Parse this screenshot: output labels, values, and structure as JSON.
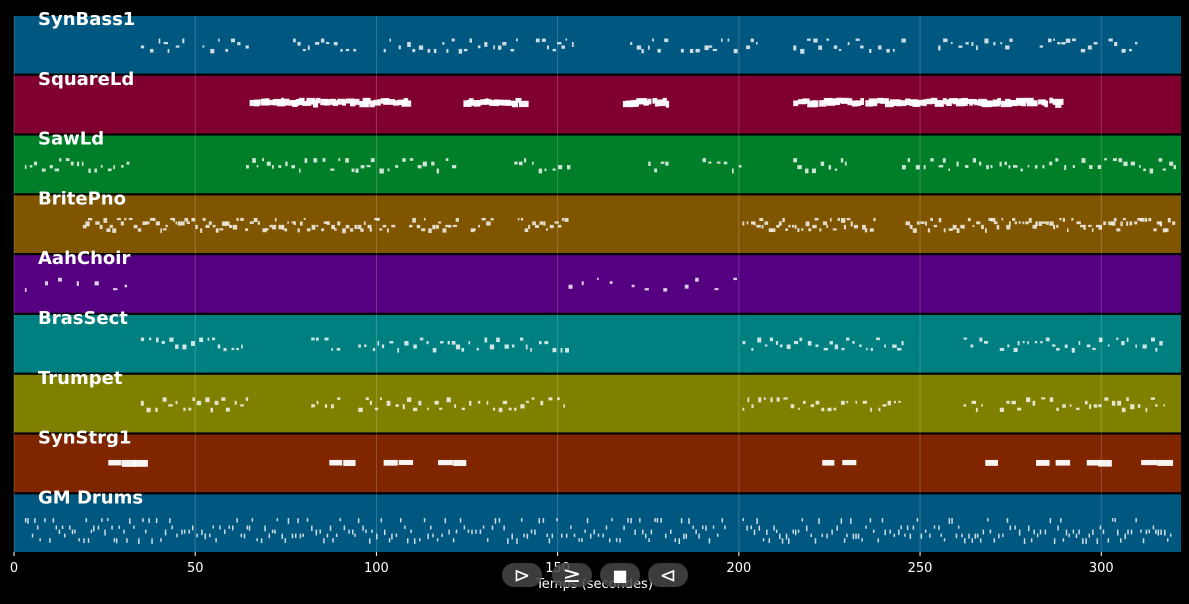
{
  "chart_data": {
    "type": "piano-roll",
    "xlabel": "Temps (secondes)",
    "xlim": [
      0,
      322
    ],
    "x_ticks": [
      0,
      50,
      100,
      150,
      200,
      250,
      300
    ],
    "grid": true,
    "tracks": [
      {
        "name": "SynBass1",
        "color": "#005780",
        "density": "medium",
        "note_style": "short",
        "segments": [
          [
            35,
            47
          ],
          [
            52,
            65
          ],
          [
            77,
            95
          ],
          [
            102,
            140
          ],
          [
            144,
            155
          ],
          [
            170,
            180
          ],
          [
            184,
            200
          ],
          [
            202,
            205
          ],
          [
            215,
            245
          ],
          [
            255,
            275
          ],
          [
            283,
            300
          ],
          [
            302,
            310
          ]
        ]
      },
      {
        "name": "SquareLd",
        "color": "#7f0030",
        "density": "dense",
        "note_style": "long",
        "segments": [
          [
            65,
            108
          ],
          [
            124,
            140
          ],
          [
            168,
            180
          ],
          [
            215,
            258
          ],
          [
            258,
            288
          ]
        ]
      },
      {
        "name": "SawLd",
        "color": "#007f28",
        "density": "medium",
        "note_style": "short",
        "segments": [
          [
            3,
            32
          ],
          [
            64,
            122
          ],
          [
            138,
            153
          ],
          [
            175,
            180
          ],
          [
            190,
            200
          ],
          [
            215,
            230
          ],
          [
            245,
            320
          ]
        ]
      },
      {
        "name": "BritePno",
        "color": "#7f5500",
        "density": "dense",
        "note_style": "short",
        "segments": [
          [
            19,
            105
          ],
          [
            109,
            122
          ],
          [
            126,
            132
          ],
          [
            139,
            153
          ],
          [
            201,
            232
          ],
          [
            234,
            238
          ],
          [
            246,
            320
          ]
        ]
      },
      {
        "name": "AahChoir",
        "color": "#540080",
        "density": "sparse",
        "note_style": "short",
        "segments": [
          [
            3,
            32
          ],
          [
            153,
            200
          ]
        ]
      },
      {
        "name": "BrasSect",
        "color": "#007f80",
        "density": "medium",
        "note_style": "short",
        "segments": [
          [
            35,
            64
          ],
          [
            82,
            90
          ],
          [
            95,
            153
          ],
          [
            201,
            245
          ],
          [
            262,
            268
          ],
          [
            272,
            318
          ]
        ]
      },
      {
        "name": "Trumpet",
        "color": "#808000",
        "density": "medium",
        "note_style": "short",
        "segments": [
          [
            35,
            64
          ],
          [
            82,
            90
          ],
          [
            95,
            153
          ],
          [
            201,
            245
          ],
          [
            262,
            268
          ],
          [
            272,
            318
          ]
        ]
      },
      {
        "name": "SynStrg1",
        "color": "#7f2500",
        "density": "sparse",
        "note_style": "long",
        "segments": [
          [
            26,
            33
          ],
          [
            87,
            94
          ],
          [
            102,
            109
          ],
          [
            117,
            123
          ],
          [
            223,
            230
          ],
          [
            268,
            274
          ],
          [
            282,
            289
          ],
          [
            296,
            303
          ],
          [
            311,
            316
          ]
        ]
      },
      {
        "name": "GM Drums",
        "color": "#005780",
        "density": "dense",
        "note_style": "tiny",
        "segments": [
          [
            3,
            197
          ],
          [
            201,
            319
          ]
        ]
      }
    ]
  },
  "transport": {
    "play_glyph": "⊳",
    "forward_glyph": "≥",
    "stop_glyph": "■",
    "back_glyph": "⊲"
  }
}
